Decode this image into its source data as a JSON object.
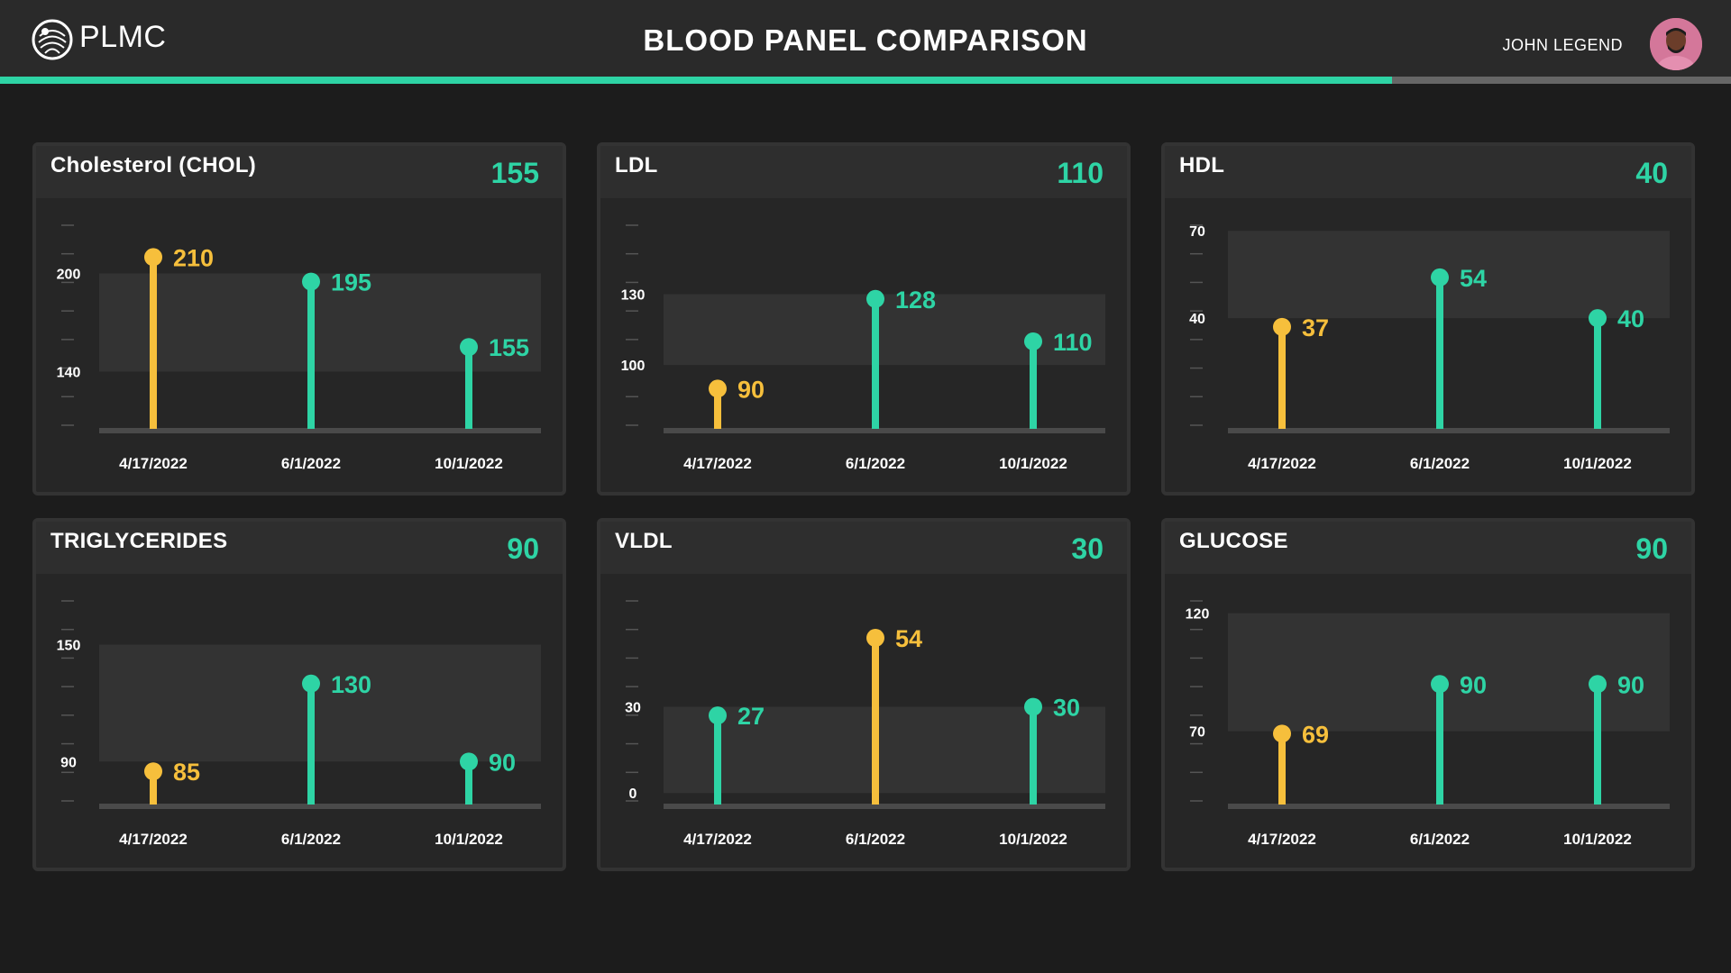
{
  "header": {
    "brand": "PLMC",
    "title": "BLOOD PANEL COMPARISON",
    "user_name": "JOHN LEGEND",
    "progress": 0.804,
    "progress_color": "#2ed4a5",
    "logo_icon": "fingerprint-globe-logo",
    "avatar_icon": "user-avatar"
  },
  "colors": {
    "in_range": "#2ed4a5",
    "out_of_range": "#f6bf3c",
    "normal_band": "#333333"
  },
  "panels": [
    {
      "title": "Cholesterol (CHOL)",
      "current_value": "155",
      "chart_data": {
        "type": "lollipop",
        "categories": [
          "4/17/2022",
          "6/1/2022",
          "10/1/2022"
        ],
        "values": [
          210,
          195,
          155
        ],
        "status": [
          "out",
          "in",
          "in"
        ],
        "ylim": [
          105,
          235
        ],
        "normal_range": [
          140,
          200
        ],
        "y_ticks": [
          "200",
          "140"
        ]
      }
    },
    {
      "title": "LDL",
      "current_value": "110",
      "chart_data": {
        "type": "lollipop",
        "categories": [
          "4/17/2022",
          "6/1/2022",
          "10/1/2022"
        ],
        "values": [
          90,
          128,
          110
        ],
        "status": [
          "out",
          "in",
          "in"
        ],
        "ylim": [
          73,
          163
        ],
        "normal_range": [
          100,
          130
        ],
        "y_ticks": [
          "130",
          "100"
        ]
      }
    },
    {
      "title": "HDL",
      "current_value": "40",
      "chart_data": {
        "type": "lollipop",
        "categories": [
          "4/17/2022",
          "6/1/2022",
          "10/1/2022"
        ],
        "values": [
          37,
          54,
          40
        ],
        "status": [
          "out",
          "in",
          "in"
        ],
        "ylim": [
          2,
          75
        ],
        "normal_range": [
          40,
          70
        ],
        "y_ticks": [
          "70",
          "40"
        ]
      }
    },
    {
      "title": "TRIGLYCERIDES",
      "current_value": "90",
      "chart_data": {
        "type": "lollipop",
        "categories": [
          "4/17/2022",
          "6/1/2022",
          "10/1/2022"
        ],
        "values": [
          85,
          130,
          90
        ],
        "status": [
          "out",
          "in",
          "in"
        ],
        "ylim": [
          68,
          177
        ],
        "normal_range": [
          90,
          150
        ],
        "y_ticks": [
          "150",
          "90"
        ]
      }
    },
    {
      "title": "VLDL",
      "current_value": "30",
      "chart_data": {
        "type": "lollipop",
        "categories": [
          "4/17/2022",
          "6/1/2022",
          "10/1/2022"
        ],
        "values": [
          27,
          54,
          30
        ],
        "status": [
          "in",
          "out",
          "in"
        ],
        "ylim": [
          -4,
          70
        ],
        "normal_range": [
          0,
          30
        ],
        "y_ticks": [
          "30",
          "0"
        ]
      }
    },
    {
      "title": "GLUCOSE",
      "current_value": "90",
      "chart_data": {
        "type": "lollipop",
        "categories": [
          "4/17/2022",
          "6/1/2022",
          "10/1/2022"
        ],
        "values": [
          69,
          90,
          90
        ],
        "status": [
          "out",
          "in",
          "in"
        ],
        "ylim": [
          39,
          129
        ],
        "normal_range": [
          70,
          120
        ],
        "y_ticks": [
          "120",
          "70"
        ]
      }
    }
  ]
}
